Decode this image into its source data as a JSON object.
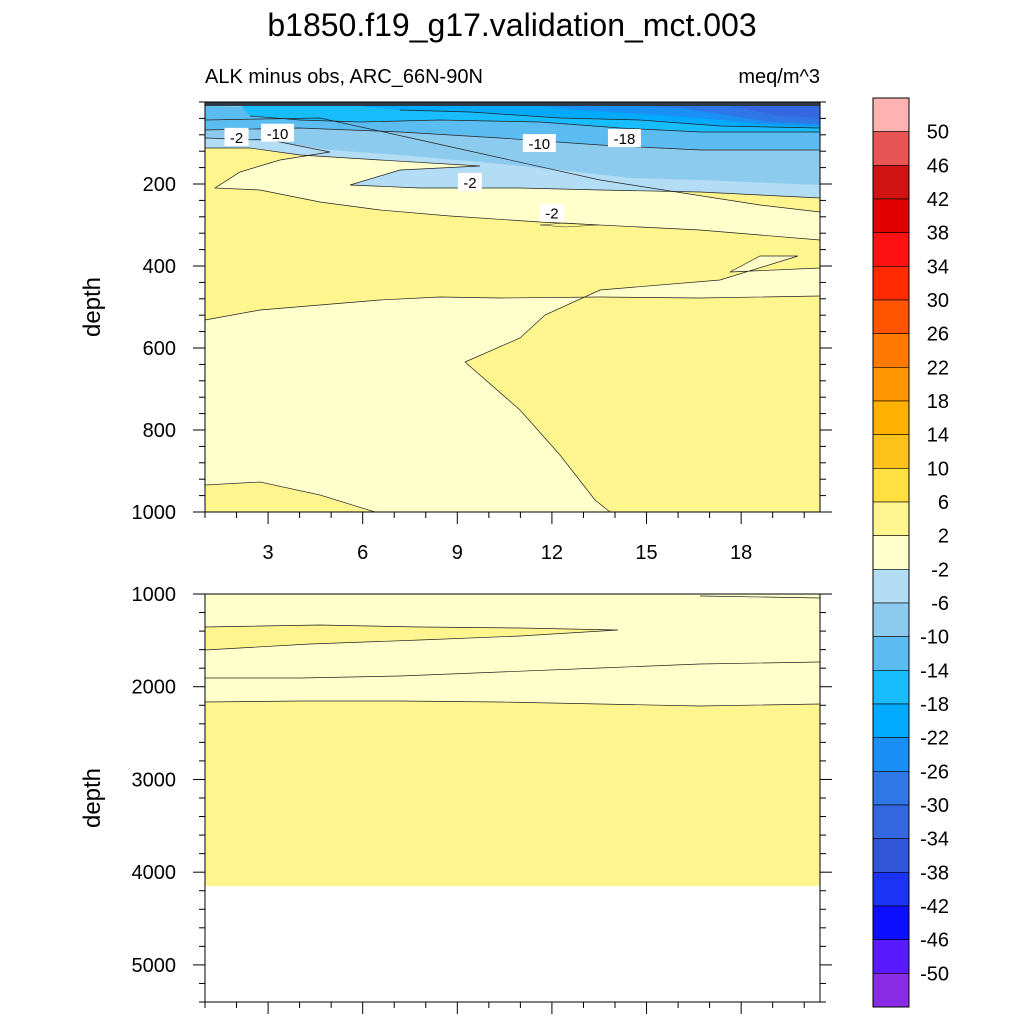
{
  "chart_data": {
    "type": "heatmap",
    "subtype": "filled-contour",
    "title": "b1850.f19_g17.validation_mct.003",
    "subtitle_left": "ALK minus obs, ARC_66N-90N",
    "subtitle_right": "meq/m^3",
    "ylabel": "depth",
    "xlabel": "",
    "x_range": [
      1,
      20.5
    ],
    "x_ticks": [
      3,
      6,
      9,
      12,
      15,
      18
    ],
    "y_scale": "reversed",
    "colorbar_labels": [
      "50",
      "46",
      "42",
      "38",
      "34",
      "30",
      "26",
      "22",
      "18",
      "14",
      "10",
      "6",
      "2",
      "-2",
      "-6",
      "-10",
      "-14",
      "-18",
      "-22",
      "-26",
      "-30",
      "-34",
      "-38",
      "-42",
      "-46",
      "-50"
    ],
    "colors": {
      "gt50": "#ffb2b2",
      "46_50": "#e85353",
      "42_46": "#cf1212",
      "38_42": "#e00000",
      "34_38": "#ff1111",
      "30_34": "#ff2a00",
      "26_30": "#ff5500",
      "22_26": "#ff7a00",
      "18_22": "#ff9500",
      "14_18": "#ffb000",
      "10_14": "#ffc21a",
      "6_10": "#ffe040",
      "2_6": "#fff58f",
      "m2_2": "#ffffcc",
      "m6_m2": "#b3dcf5",
      "m10_m6": "#8ccbee",
      "m14_m10": "#5bbcf2",
      "m18_m14": "#17bdfd",
      "m22_m18": "#00aaff",
      "m26_m22": "#1a8ff5",
      "m30_m26": "#2f77e6",
      "m34_m30": "#3467e0",
      "m38_m34": "#3055d9",
      "m42_m38": "#1a33f5",
      "m46_m42": "#0d0dff",
      "m50_m46": "#5a1aff",
      "lt_m50": "#8a2be6"
    },
    "panels": [
      {
        "name": "upper",
        "y_range": [
          0,
          1000
        ],
        "y_ticks": [
          200,
          400,
          600,
          800,
          1000
        ],
        "contour_labels": [
          {
            "text": "-2",
            "x": 2.0,
            "y": 85
          },
          {
            "text": "-10",
            "x": 3.3,
            "y": 75
          },
          {
            "text": "-10",
            "x": 11.6,
            "y": 100
          },
          {
            "text": "-18",
            "x": 14.3,
            "y": 88
          },
          {
            "text": "-2",
            "x": 9.4,
            "y": 195
          },
          {
            "text": "-2",
            "x": 12.0,
            "y": 270
          }
        ]
      },
      {
        "name": "lower",
        "y_range": [
          1000,
          5400
        ],
        "y_ticks": [
          1000,
          2000,
          3000,
          4000,
          5000
        ],
        "data_bottom": 4130
      }
    ]
  }
}
